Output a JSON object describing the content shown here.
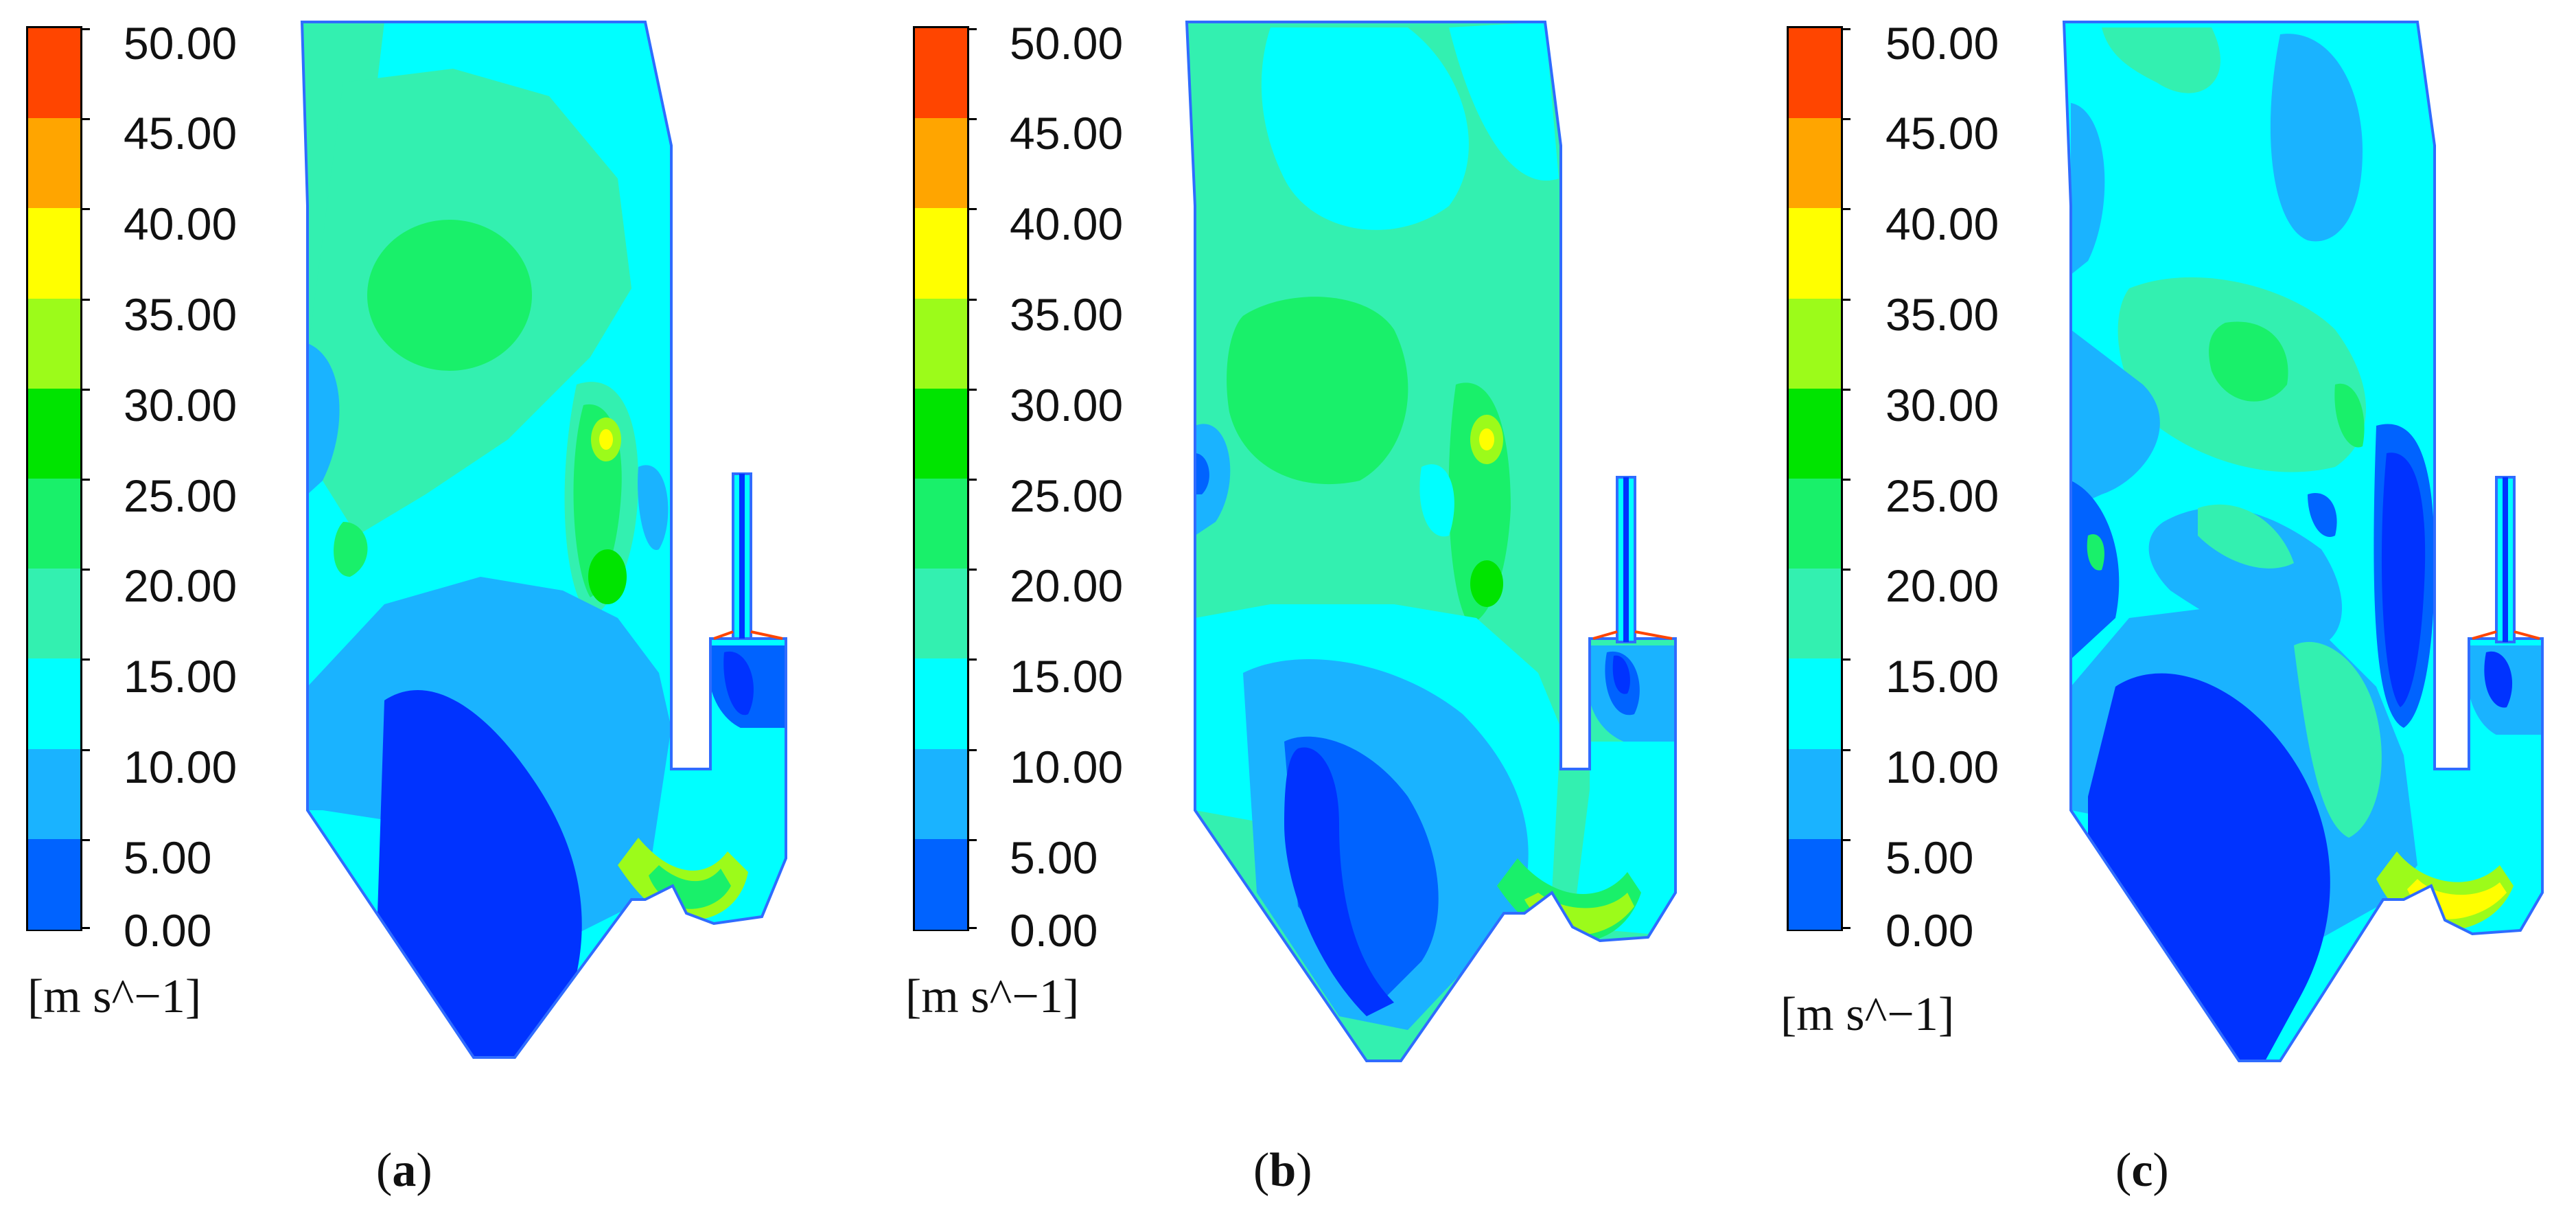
{
  "legend": {
    "labels": [
      "50.00",
      "45.00",
      "40.00",
      "35.00",
      "30.00",
      "25.00",
      "20.00",
      "15.00",
      "10.00",
      "5.00",
      "0.00"
    ],
    "unit": "[m s^−1]",
    "colors": [
      "#ff4500",
      "#ffa500",
      "#ffff00",
      "#9cfb1a",
      "#00e400",
      "#19f06a",
      "#33f0b0",
      "#00ffff",
      "#1ab3ff",
      "#0063ff",
      "#0033ff"
    ]
  },
  "panels": [
    {
      "id": "a",
      "label": "a"
    },
    {
      "id": "b",
      "label": "b"
    },
    {
      "id": "c",
      "label": "c"
    }
  ]
}
